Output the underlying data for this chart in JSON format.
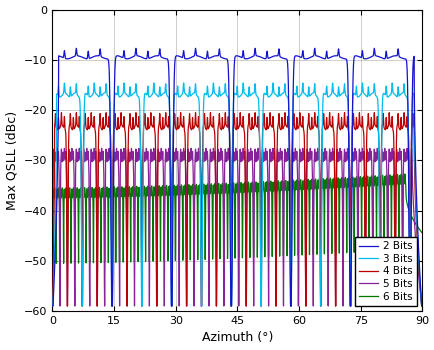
{
  "title": "",
  "xlabel": "Azimuth (°)",
  "ylabel": "Max QSLL (dBc)",
  "xlim": [
    0,
    90
  ],
  "ylim": [
    -60,
    0
  ],
  "xticks": [
    0,
    15,
    30,
    45,
    60,
    75,
    90
  ],
  "yticks": [
    0,
    -10,
    -20,
    -30,
    -40,
    -50,
    -60
  ],
  "colors": {
    "2bits": "#1414CC",
    "3bits": "#00BBEE",
    "4bits": "#BB0000",
    "5bits": "#882299",
    "6bits": "#007700"
  },
  "legend": [
    "2 Bits",
    "3 Bits",
    "4 Bits",
    "5 Bits",
    "6 Bits"
  ],
  "background_color": "#ffffff",
  "grid_color": "#aaaaaa",
  "linewidth": 0.9,
  "bases": [
    -9.5,
    -17.0,
    -23.5,
    -30.0,
    -36.5
  ],
  "periods": [
    14.5,
    7.25,
    3.625,
    1.8125,
    0.90625
  ]
}
